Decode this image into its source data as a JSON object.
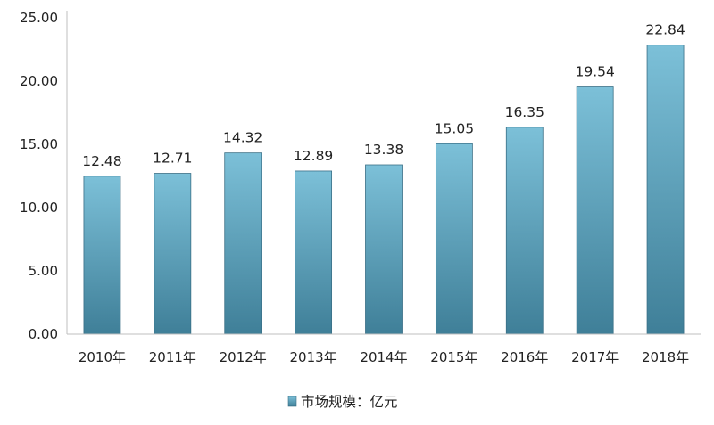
{
  "chart_data": {
    "type": "bar",
    "categories": [
      "2010年",
      "2011年",
      "2012年",
      "2013年",
      "2014年",
      "2015年",
      "2016年",
      "2017年",
      "2018年"
    ],
    "series": [
      {
        "name": "市场规模：亿元",
        "values": [
          12.48,
          12.71,
          14.32,
          12.89,
          13.38,
          15.05,
          16.35,
          19.54,
          22.84
        ]
      }
    ],
    "data_labels": [
      "12.48",
      "12.71",
      "14.32",
      "12.89",
      "13.38",
      "15.05",
      "16.35",
      "19.54",
      "22.84"
    ],
    "y_ticks": [
      "0.00",
      "5.00",
      "10.00",
      "15.00",
      "20.00",
      "25.00"
    ],
    "ylim": [
      0,
      25
    ],
    "title": "",
    "xlabel": "",
    "ylabel": "",
    "grid": false,
    "legend_position": "bottom",
    "colors": {
      "bar_top": "#7cc0d8",
      "bar_bottom": "#3f7f98",
      "bar_edge": "#3a6f86",
      "axis": "#bfbfbf"
    }
  }
}
